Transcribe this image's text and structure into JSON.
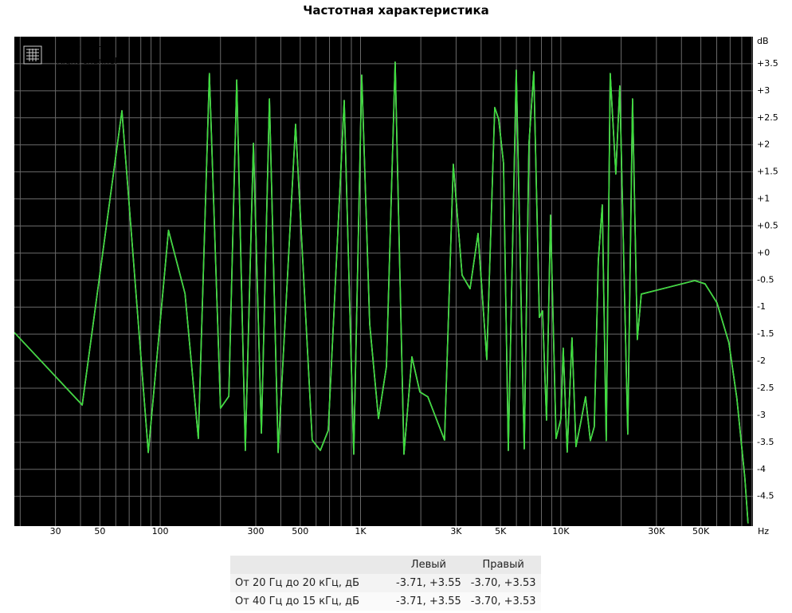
{
  "chart_data": {
    "type": "line",
    "title": "Частотная характеристика",
    "xlabel": "Hz",
    "ylabel": "dB",
    "xscale": "log",
    "xlim": [
      18.7,
      91000
    ],
    "ylim": [
      -5.05,
      4.0
    ],
    "xticks": [
      30,
      50,
      100,
      300,
      500,
      {
        "value": 1000,
        "label": "1K"
      },
      {
        "value": 3000,
        "label": "3K"
      },
      {
        "value": 5000,
        "label": "5K"
      },
      {
        "value": 10000,
        "label": "10K"
      },
      {
        "value": 30000,
        "label": "30K"
      },
      {
        "value": 50000,
        "label": "50K"
      }
    ],
    "xgrid": [
      20,
      30,
      40,
      50,
      60,
      70,
      80,
      90,
      100,
      200,
      300,
      400,
      500,
      600,
      700,
      800,
      900,
      1000,
      2000,
      3000,
      4000,
      5000,
      6000,
      7000,
      8000,
      9000,
      10000,
      20000,
      30000,
      40000,
      50000,
      60000,
      70000,
      80000,
      90000
    ],
    "yticks": [
      {
        "value": 3.5,
        "label": "+3.5"
      },
      {
        "value": 3,
        "label": "+3"
      },
      {
        "value": 2.5,
        "label": "+2.5"
      },
      {
        "value": 2,
        "label": "+2"
      },
      {
        "value": 1.5,
        "label": "+1.5"
      },
      {
        "value": 1,
        "label": "+1"
      },
      {
        "value": 0.5,
        "label": "+0.5"
      },
      {
        "value": 0,
        "label": "+0"
      },
      -0.5,
      -1,
      -1.5,
      -2,
      -2.5,
      -3,
      -3.5,
      -4,
      -4.5
    ],
    "grid": true,
    "legend": "top-left",
    "x": [
      18.7,
      40.8,
      64.4,
      87.2,
      110,
      133,
      155,
      176,
      200,
      220,
      241,
      266,
      292,
      320,
      351,
      388,
      474,
      574,
      630,
      690,
      829,
      925,
      1014,
      1111,
      1229,
      1347,
      1489,
      1647,
      1805,
      1978,
      2168,
      2627,
      2905,
      3214,
      3522,
      3860,
      4268,
      4677,
      4897,
      5174,
      5467,
      5990,
      6565,
      6934,
      7326,
      7812,
      8102,
      8481,
      8879,
      9465,
      10000,
      10277,
      10759,
      11367,
      11900,
      12574,
      13285,
      14036,
      14690,
      15380,
      16100,
      16850,
      17640,
      18810,
      19690,
      21580,
      22800,
      24080,
      25210,
      34740,
      46560,
      52450,
      60150,
      69020,
      75640,
      82900,
      86000
    ],
    "series": [
      {
        "name": "Left channel",
        "color": "#d8d8d8",
        "values": [
          -1.47,
          -2.81,
          2.63,
          -3.69,
          0.42,
          -0.75,
          -3.43,
          3.32,
          -2.87,
          -2.65,
          3.2,
          -3.65,
          2.03,
          -3.33,
          2.85,
          -3.69,
          2.38,
          -3.46,
          -3.65,
          -3.28,
          2.82,
          -3.72,
          3.29,
          -1.31,
          -3.06,
          -2.1,
          3.53,
          -3.72,
          -1.92,
          -2.57,
          -2.66,
          -3.46,
          1.64,
          -0.41,
          -0.66,
          0.36,
          -1.97,
          2.69,
          2.47,
          1.66,
          -3.65,
          3.38,
          -3.62,
          2.03,
          3.35,
          -1.19,
          -1.07,
          -3.09,
          0.7,
          -3.43,
          -3.07,
          -1.76,
          -3.68,
          -1.57,
          -3.58,
          -3.13,
          -2.66,
          -3.47,
          -3.21,
          -0.14,
          0.89,
          -3.47,
          3.32,
          1.46,
          3.09,
          -3.35,
          2.85,
          -1.6,
          -0.76,
          -0.63,
          -0.51,
          -0.57,
          -0.92,
          -1.66,
          -2.69,
          -4.16,
          -5.0
        ]
      },
      {
        "name": "Right channel",
        "color": "#3cdc3c",
        "values": [
          -1.47,
          -2.81,
          2.63,
          -3.69,
          0.42,
          -0.75,
          -3.43,
          3.32,
          -2.87,
          -2.65,
          3.2,
          -3.65,
          2.03,
          -3.33,
          2.85,
          -3.69,
          2.38,
          -3.46,
          -3.65,
          -3.28,
          2.82,
          -3.72,
          3.29,
          -1.31,
          -3.06,
          -2.1,
          3.53,
          -3.72,
          -1.92,
          -2.57,
          -2.66,
          -3.46,
          1.64,
          -0.41,
          -0.66,
          0.36,
          -1.97,
          2.69,
          2.47,
          1.66,
          -3.65,
          3.38,
          -3.62,
          2.03,
          3.35,
          -1.19,
          -1.07,
          -3.09,
          0.7,
          -3.43,
          -3.07,
          -1.76,
          -3.68,
          -1.57,
          -3.58,
          -3.13,
          -2.66,
          -3.47,
          -3.21,
          -0.14,
          0.89,
          -3.47,
          3.32,
          1.46,
          3.09,
          -3.35,
          2.85,
          -1.6,
          -0.76,
          -0.63,
          -0.51,
          -0.57,
          -0.92,
          -1.66,
          -2.69,
          -4.16,
          -5.0
        ]
      }
    ]
  },
  "table": {
    "header": [
      "Левый",
      "Правый"
    ],
    "rows": [
      [
        "От 20 Гц до 20 кГц, дБ",
        "-3.71, +3.55",
        "-3.70, +3.53"
      ],
      [
        "От 40 Гц до 15 кГц, дБ",
        "-3.71, +3.55",
        "-3.70, +3.53"
      ]
    ]
  }
}
